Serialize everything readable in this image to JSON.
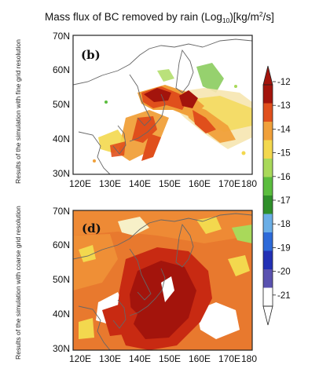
{
  "figure": {
    "title": "Mass flux of BC removed by rain (Log",
    "title_sub": "10",
    "title_units": ")[kg/m",
    "title_sup": "2",
    "title_end": "/s]"
  },
  "panels": [
    {
      "id": "top",
      "label": "(b)",
      "side_label": "Results of the simulation with fine grid resolution",
      "y_ticks": [
        "70N",
        "60N",
        "50N",
        "40N",
        "30N"
      ],
      "x_ticks": [
        "120E",
        "130E",
        "140E",
        "150E",
        "160E",
        "170E",
        "180"
      ]
    },
    {
      "id": "bottom",
      "label": "(d)",
      "side_label": "Results of the simulation with coarse grid resolution",
      "y_ticks": [
        "70N",
        "60N",
        "50N",
        "40N",
        "30N"
      ],
      "x_ticks": [
        "120E",
        "130E",
        "140E",
        "150E",
        "160E",
        "170E",
        "180"
      ]
    }
  ],
  "colorbar": {
    "labels": [
      "-12",
      "-13",
      "-14",
      "-15",
      "-16",
      "-17",
      "-18",
      "-19",
      "-20",
      "-21"
    ],
    "colors": [
      "#a3140c",
      "#e04f1c",
      "#f0a03a",
      "#f3d84e",
      "#a9d95a",
      "#5bbd3e",
      "#2f8f2a",
      "#6aaee6",
      "#2d6ad9",
      "#2230b5",
      "#5a52b0",
      "#ffffff"
    ]
  },
  "colors": {
    "frame": "#222222",
    "background": "#ffffff",
    "coast": "#666666"
  }
}
